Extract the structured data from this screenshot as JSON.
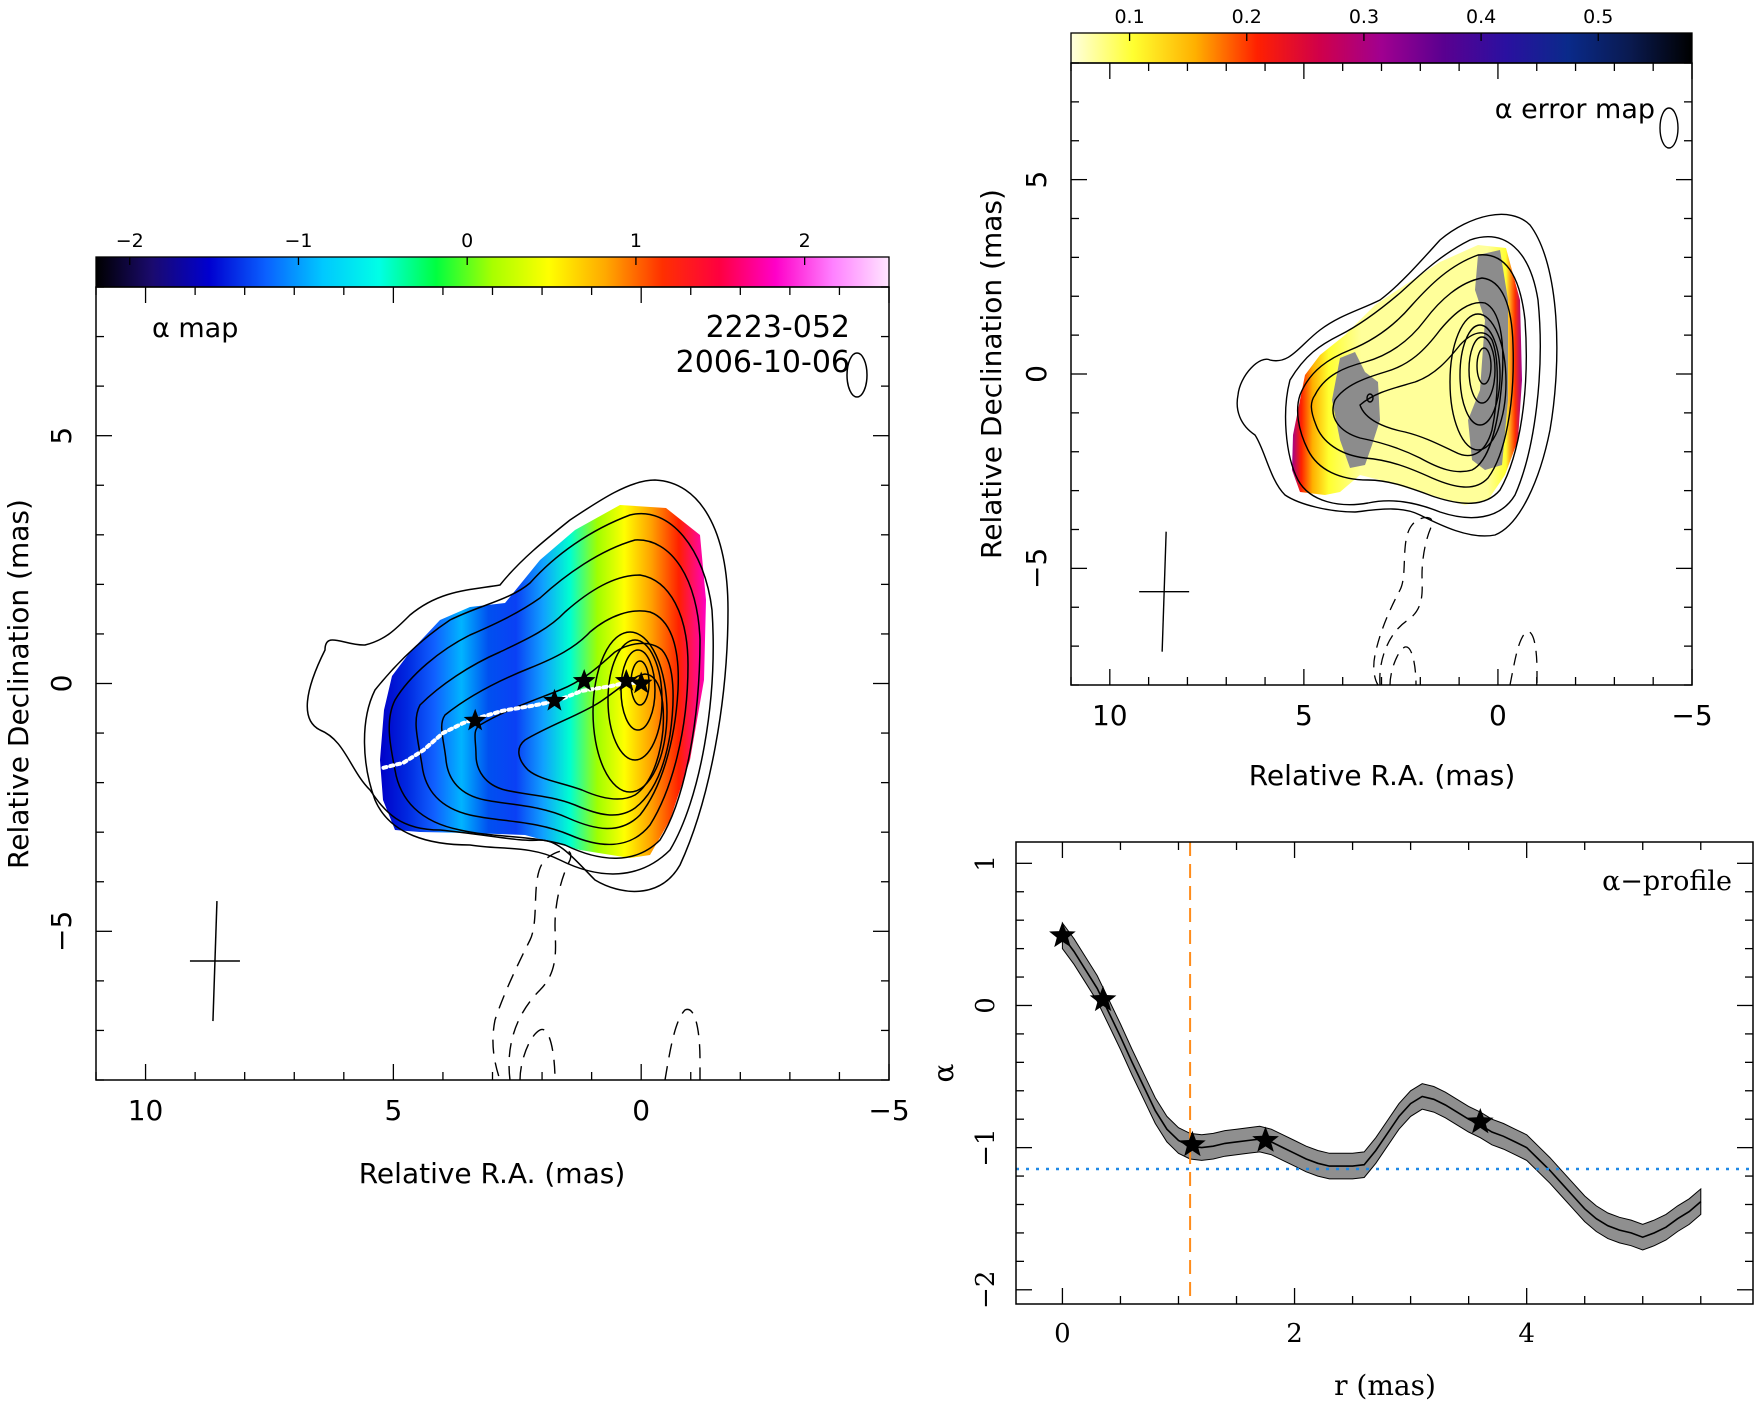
{
  "source_name": "2223-052",
  "epoch": "2006-10-06",
  "chart_data": [
    {
      "type": "heatmap",
      "title": "α map",
      "xlabel": "Relative R.A. (mas)",
      "ylabel": "Relative Declination (mas)",
      "xlim": [
        11,
        -5
      ],
      "ylim": [
        -8,
        8
      ],
      "x_ticks": [
        10,
        5,
        0,
        -5
      ],
      "y_ticks": [
        5,
        0,
        -5
      ],
      "colorbar": {
        "range": [
          -2.2,
          2.5
        ],
        "ticks": [
          -2,
          -1,
          0,
          1,
          2
        ],
        "colors": [
          "#000000",
          "#1a0a6e",
          "#0000d0",
          "#0a60ff",
          "#00c8ff",
          "#00ffe6",
          "#00ff40",
          "#a8ff00",
          "#ffff00",
          "#ffa800",
          "#ff3000",
          "#ff0040",
          "#ff00c8",
          "#ff80ff",
          "#ffe6ff"
        ]
      },
      "ridge_line": [
        [
          5.2,
          -1.7
        ],
        [
          4.8,
          -1.6
        ],
        [
          4.4,
          -1.35
        ],
        [
          4.0,
          -1.0
        ],
        [
          3.6,
          -0.8
        ],
        [
          3.3,
          -0.7
        ],
        [
          2.8,
          -0.55
        ],
        [
          2.2,
          -0.45
        ],
        [
          1.7,
          -0.35
        ],
        [
          1.2,
          -0.15
        ],
        [
          0.6,
          -0.05
        ],
        [
          0.3,
          0.02
        ],
        [
          0,
          0
        ]
      ],
      "stars": [
        [
          0.0,
          0.0
        ],
        [
          0.3,
          0.05
        ],
        [
          1.15,
          0.05
        ],
        [
          1.75,
          -0.35
        ],
        [
          3.35,
          -0.75
        ]
      ],
      "beam": {
        "x": 8.6,
        "y": -5.6
      }
    },
    {
      "type": "heatmap",
      "title": "α error map",
      "xlabel": "Relative R.A. (mas)",
      "ylabel": "Relative Declination (mas)",
      "xlim": [
        11,
        -5
      ],
      "ylim": [
        -8,
        8
      ],
      "x_ticks": [
        10,
        5,
        0,
        -5
      ],
      "y_ticks": [
        5,
        0,
        -5
      ],
      "colorbar": {
        "range": [
          0.05,
          0.58
        ],
        "ticks": [
          0.1,
          0.2,
          0.3,
          0.4,
          0.5
        ],
        "colors": [
          "#ffffe0",
          "#ffff30",
          "#ffb000",
          "#ff2000",
          "#d0004a",
          "#a00090",
          "#5a0090",
          "#2a10a0",
          "#0a2a8a",
          "#0a1a50",
          "#000000"
        ]
      },
      "beam": {
        "x": 8.6,
        "y": -5.6
      }
    },
    {
      "type": "line",
      "title": "α−profile",
      "xlabel": "r (mas)",
      "ylabel": "α",
      "xlim": [
        -0.4,
        5.95
      ],
      "ylim": [
        -2.1,
        1.15
      ],
      "x_ticks": [
        0,
        2,
        4
      ],
      "y_ticks": [
        1,
        0,
        -1,
        -2
      ],
      "series": [
        {
          "x": [
            0,
            0.1,
            0.2,
            0.3,
            0.4,
            0.5,
            0.6,
            0.7,
            0.8,
            0.9,
            1.0,
            1.1,
            1.2,
            1.3,
            1.4,
            1.5,
            1.6,
            1.7,
            1.8,
            1.9,
            2.0,
            2.1,
            2.2,
            2.3,
            2.4,
            2.5,
            2.6,
            2.7,
            2.8,
            2.9,
            3.0,
            3.1,
            3.2,
            3.3,
            3.4,
            3.5,
            3.6,
            3.7,
            3.8,
            3.9,
            4.0,
            4.1,
            4.2,
            4.3,
            4.4,
            4.5,
            4.6,
            4.7,
            4.8,
            4.9,
            5.0,
            5.1,
            5.2,
            5.3,
            5.4,
            5.5
          ],
          "values": [
            0.49,
            0.38,
            0.25,
            0.12,
            -0.05,
            -0.22,
            -0.4,
            -0.57,
            -0.74,
            -0.87,
            -0.95,
            -0.99,
            -1.0,
            -0.99,
            -0.97,
            -0.96,
            -0.95,
            -0.94,
            -0.96,
            -1.0,
            -1.04,
            -1.08,
            -1.11,
            -1.13,
            -1.13,
            -1.13,
            -1.12,
            -1.02,
            -0.9,
            -0.78,
            -0.69,
            -0.64,
            -0.66,
            -0.7,
            -0.75,
            -0.8,
            -0.84,
            -0.89,
            -0.92,
            -0.96,
            -1.0,
            -1.08,
            -1.16,
            -1.25,
            -1.34,
            -1.43,
            -1.5,
            -1.55,
            -1.58,
            -1.6,
            -1.63,
            -1.6,
            -1.56,
            -1.5,
            -1.45,
            -1.38
          ],
          "error": 0.09
        }
      ],
      "stars": [
        [
          0,
          0.49
        ],
        [
          0.35,
          0.04
        ],
        [
          1.12,
          -0.98
        ],
        [
          1.75,
          -0.95
        ],
        [
          3.6,
          -0.82
        ]
      ],
      "hline": -1.15,
      "vline": 1.1
    }
  ]
}
